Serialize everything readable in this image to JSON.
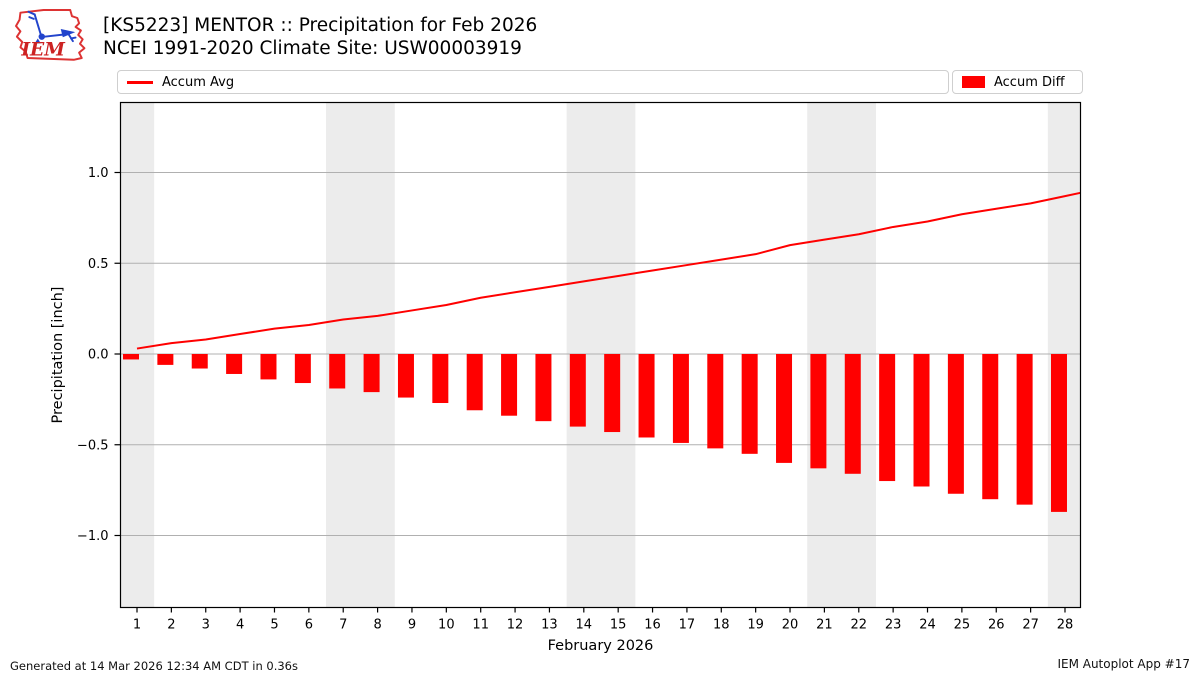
{
  "header": {
    "title_line1": "[KS5223] MENTOR :: Precipitation for Feb 2026",
    "title_line2": "NCEI 1991-2020 Climate Site: USW00003919",
    "logo_text": "IEM"
  },
  "legend": {
    "avg_label": "Accum Avg",
    "diff_label": "Accum Diff"
  },
  "footer": {
    "generated": "Generated at 14 Mar 2026 12:34 AM CDT in 0.36s",
    "app": "IEM Autoplot App #17"
  },
  "colors": {
    "accent_red": "#ff0000",
    "grid": "#b0b0b0",
    "weekend_band": "#ececec",
    "frame": "#000000",
    "logo_red": "#cc2222",
    "logo_blue": "#2244cc"
  },
  "chart_data": {
    "type": "line+bar",
    "title": "[KS5223] MENTOR :: Precipitation for Feb 2026",
    "subtitle": "NCEI 1991-2020 Climate Site: USW00003919",
    "xlabel": "February 2026",
    "ylabel": "Precipitation [inch]",
    "x": [
      1,
      2,
      3,
      4,
      5,
      6,
      7,
      8,
      9,
      10,
      11,
      12,
      13,
      14,
      15,
      16,
      17,
      18,
      19,
      20,
      21,
      22,
      23,
      24,
      25,
      26,
      27,
      28
    ],
    "series": [
      {
        "name": "Accum Avg",
        "type": "line",
        "color": "#ff0000",
        "values": [
          0.03,
          0.06,
          0.08,
          0.11,
          0.14,
          0.16,
          0.19,
          0.21,
          0.24,
          0.27,
          0.31,
          0.34,
          0.37,
          0.4,
          0.43,
          0.46,
          0.49,
          0.52,
          0.55,
          0.6,
          0.63,
          0.66,
          0.7,
          0.73,
          0.77,
          0.8,
          0.83,
          0.87
        ]
      },
      {
        "name": "Accum Diff",
        "type": "bar",
        "color": "#ff0000",
        "values": [
          -0.03,
          -0.06,
          -0.08,
          -0.11,
          -0.14,
          -0.16,
          -0.19,
          -0.21,
          -0.24,
          -0.27,
          -0.31,
          -0.34,
          -0.37,
          -0.4,
          -0.43,
          -0.46,
          -0.49,
          -0.52,
          -0.55,
          -0.6,
          -0.63,
          -0.66,
          -0.7,
          -0.73,
          -0.77,
          -0.8,
          -0.83,
          -0.87
        ]
      }
    ],
    "ylim": [
      -1.4,
      1.4
    ],
    "yticks": [
      -1.0,
      -0.5,
      0.0,
      0.5,
      1.0
    ],
    "weekend_bands": [
      [
        0.5,
        1.5
      ],
      [
        6.5,
        8.5
      ],
      [
        13.5,
        15.5
      ],
      [
        20.5,
        22.5
      ],
      [
        27.5,
        28.6
      ]
    ],
    "grid": true,
    "legend_position": "top"
  }
}
